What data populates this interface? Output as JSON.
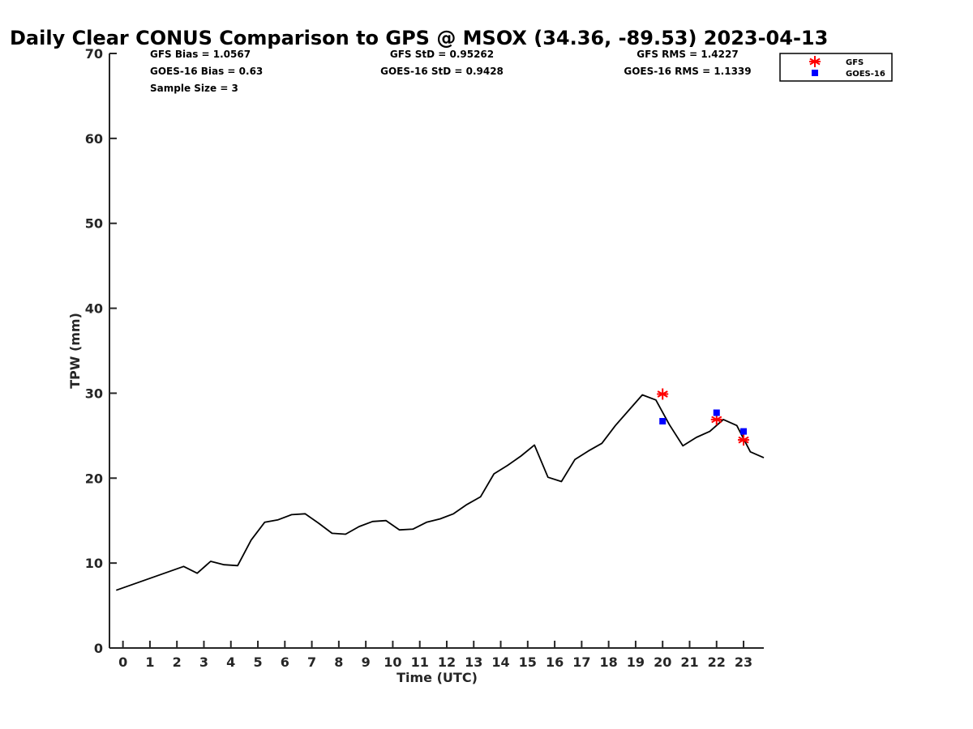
{
  "chart_data": {
    "type": "line",
    "title": "Daily Clear CONUS Comparison to GPS @ MSOX (34.36, -89.53) 2023-04-13",
    "xlabel": "Time (UTC)",
    "ylabel": "TPW (mm)",
    "xlim": [
      -0.5,
      23.75
    ],
    "ylim": [
      0,
      70
    ],
    "xticks": [
      0,
      1,
      2,
      3,
      4,
      5,
      6,
      7,
      8,
      9,
      10,
      11,
      12,
      13,
      14,
      15,
      16,
      17,
      18,
      19,
      20,
      21,
      22,
      23
    ],
    "xtick_labels": [
      "0",
      "1",
      "2",
      "3",
      "4",
      "5",
      "6",
      "7",
      "8",
      "9",
      "10",
      "11",
      "12",
      "13",
      "14",
      "15",
      "16",
      "17",
      "18",
      "19",
      "20",
      "21",
      "22",
      "23"
    ],
    "yticks": [
      0,
      10,
      20,
      30,
      40,
      50,
      60,
      70
    ],
    "ytick_labels": [
      "0",
      "10",
      "20",
      "30",
      "40",
      "50",
      "60",
      "70"
    ],
    "gps_series": {
      "name": "GPS",
      "color": "#000000",
      "x": [
        -0.25,
        2.25,
        2.75,
        3.25,
        3.75,
        4.25,
        4.75,
        5.25,
        5.75,
        6.25,
        6.75,
        7.25,
        7.75,
        8.25,
        8.75,
        9.25,
        9.75,
        10.25,
        10.75,
        11.25,
        11.75,
        12.25,
        12.75,
        13.25,
        13.75,
        14.25,
        14.75,
        15.25,
        15.75,
        16.25,
        16.75,
        17.25,
        17.75,
        18.25,
        18.75,
        19.25,
        19.75,
        20.25,
        20.75,
        21.25,
        21.75,
        22.25,
        22.75,
        23.25,
        23.75
      ],
      "y": [
        6.8,
        9.6,
        8.8,
        10.2,
        9.8,
        9.7,
        12.7,
        14.8,
        15.1,
        15.7,
        15.8,
        14.7,
        13.5,
        13.4,
        14.3,
        14.9,
        15.0,
        13.9,
        14.0,
        14.8,
        15.2,
        15.8,
        16.9,
        17.8,
        20.5,
        21.5,
        22.6,
        23.9,
        20.1,
        19.6,
        22.2,
        23.2,
        24.1,
        26.2,
        28.0,
        29.8,
        29.2,
        26.3,
        23.8,
        24.8,
        25.5,
        26.9,
        26.2,
        23.1,
        22.4
      ]
    },
    "series": [
      {
        "name": "GFS",
        "marker": "asterisk",
        "color": "#ff0000",
        "x": [
          20,
          22,
          23
        ],
        "y": [
          29.9,
          26.9,
          24.5
        ]
      },
      {
        "name": "GOES-16",
        "marker": "square",
        "color": "#0000ff",
        "x": [
          20,
          22,
          23
        ],
        "y": [
          26.7,
          27.7,
          25.5
        ]
      }
    ],
    "stats": [
      [
        "GFS Bias = 1.0567",
        "GFS StD = 0.95262",
        "GFS RMS = 1.4227"
      ],
      [
        "GOES-16 Bias = 0.63",
        "GOES-16 StD = 0.9428",
        "GOES-16 RMS = 1.1339"
      ],
      [
        "Sample Size = 3"
      ]
    ],
    "legend": {
      "placement": "top-right",
      "entries": [
        "GFS",
        "GOES-16"
      ]
    }
  }
}
